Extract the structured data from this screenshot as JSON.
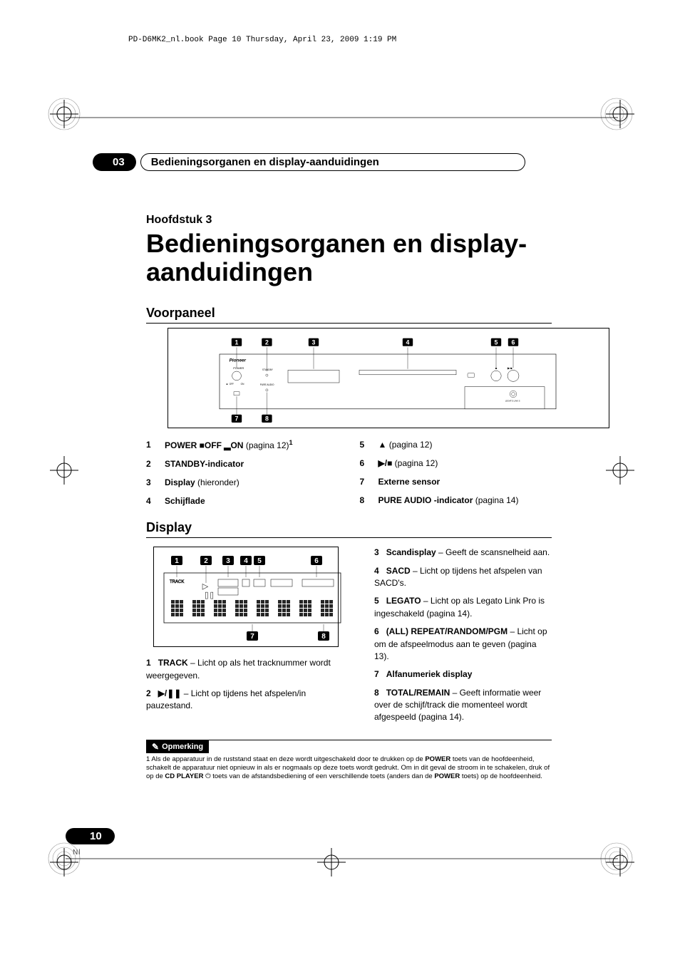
{
  "registration": {
    "color": "#000000"
  },
  "book_header": "PD-D6MK2_nl.book  Page 10  Thursday, April 23, 2009  1:19 PM",
  "section": {
    "number": "03",
    "title": "Bedieningsorganen en display-aanduidingen"
  },
  "chapter": {
    "label": "Hoofdstuk 3",
    "title": "Bedieningsorganen en display-aanduidingen"
  },
  "front_panel": {
    "heading": "Voorpaneel",
    "callouts_top": [
      "1",
      "2",
      "3",
      "4",
      "5",
      "6"
    ],
    "callouts_bottom": [
      "7",
      "8"
    ],
    "labels": {
      "brand": "Pioneer",
      "power": "POWER",
      "standby": "STANDBY",
      "off": "OFF",
      "on": "ON",
      "pure_audio": "PURE AUDIO",
      "legato": "LEGATO LINK S"
    },
    "items_left": [
      {
        "num": "1",
        "label": "POWER ■OFF ▂ON",
        "rest": " (pagina 12)",
        "sup": "1"
      },
      {
        "num": "2",
        "label": "STANDBY-indicator",
        "rest": ""
      },
      {
        "num": "3",
        "label": "Display",
        "rest": " (hieronder)"
      },
      {
        "num": "4",
        "label": "Schijflade",
        "rest": ""
      }
    ],
    "items_right": [
      {
        "num": "5",
        "label": "▲",
        "rest": " (pagina 12)"
      },
      {
        "num": "6",
        "label": "▶/■",
        "rest": " (pagina 12)"
      },
      {
        "num": "7",
        "label": "Externe sensor",
        "rest": ""
      },
      {
        "num": "8",
        "label": "PURE AUDIO -indicator",
        "rest": " (pagina 14)"
      }
    ]
  },
  "display": {
    "heading": "Display",
    "callouts_top": [
      "1",
      "2",
      "3",
      "4",
      "5",
      "6"
    ],
    "callouts_bottom": [
      "7",
      "8"
    ],
    "paras_left": [
      {
        "num": "1",
        "label": "TRACK",
        "rest": " – Licht op als het tracknummer wordt weergegeven."
      },
      {
        "num": "2",
        "label": "▶/❚❚",
        "rest": " – Licht op tijdens het afspelen/in pauzestand."
      }
    ],
    "paras_right": [
      {
        "num": "3",
        "label": "Scandisplay",
        "rest": " – Geeft de scansnelheid aan."
      },
      {
        "num": "4",
        "label": "SACD",
        "rest": " – Licht op tijdens het afspelen van SACD's."
      },
      {
        "num": "5",
        "label": "LEGATO",
        "rest": " – Licht op als Legato Link Pro is ingeschakeld (pagina 14)."
      },
      {
        "num": "6",
        "label": "(ALL) REPEAT/RANDOM/PGM",
        "rest": " – Licht op om de afspeelmodus aan te geven (pagina 13)."
      },
      {
        "num": "7",
        "label": "Alfanumeriek display",
        "rest": ""
      },
      {
        "num": "8",
        "label": "TOTAL/REMAIN",
        "rest": " – Geeft informatie weer over de schijf/track die momenteel wordt afgespeeld (pagina 14)."
      }
    ]
  },
  "footnote": {
    "badge": "Opmerking",
    "text_parts": [
      "1 Als de apparatuur in de ruststand staat en deze wordt uitgeschakeld door te drukken op de ",
      "POWER",
      " toets van de hoofdeenheid, schakelt de apparatuur niet opnieuw in als er nogmaals op deze toets wordt gedrukt. Om in dit geval de stroom in te schakelen, druk of op de ",
      "CD PLAYER",
      " ⏻ toets van de afstandsbediening of een verschillende toets (anders dan de ",
      "POWER",
      " toets) op de hoofdeenheid."
    ]
  },
  "page_number": "10",
  "lang": "Nl"
}
